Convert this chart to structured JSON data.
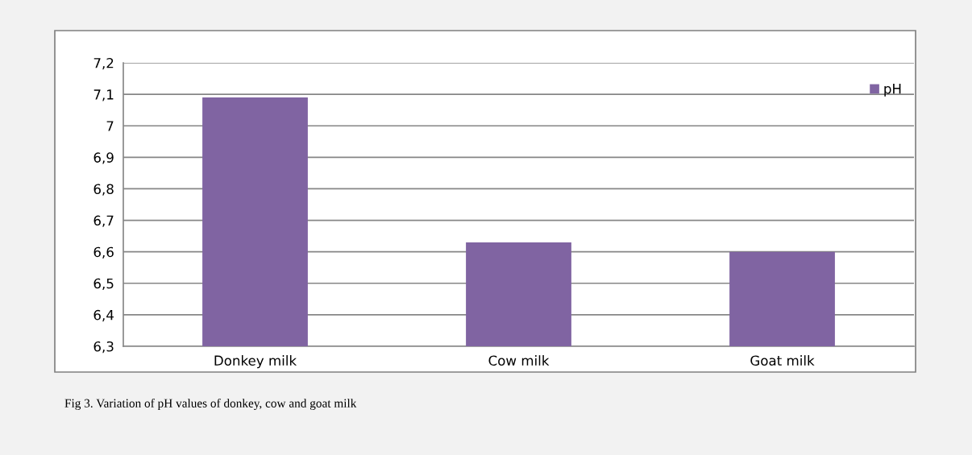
{
  "chart_data": {
    "type": "bar",
    "categories": [
      "Donkey milk",
      "Cow milk",
      "Goat milk"
    ],
    "series": [
      {
        "name": "pH",
        "color": "#8064a2",
        "values": [
          7.09,
          6.63,
          6.6
        ]
      }
    ],
    "ylim": [
      6.3,
      7.2
    ],
    "yticks": [
      {
        "value": 6.3,
        "label": "6,3"
      },
      {
        "value": 6.4,
        "label": "6,4"
      },
      {
        "value": 6.5,
        "label": "6,5"
      },
      {
        "value": 6.6,
        "label": "6,6"
      },
      {
        "value": 6.7,
        "label": "6,7"
      },
      {
        "value": 6.8,
        "label": "6,8"
      },
      {
        "value": 6.9,
        "label": "6,9"
      },
      {
        "value": 7,
        "label": "7"
      },
      {
        "value": 7.1,
        "label": "7,1"
      },
      {
        "value": 7.2,
        "label": "7,2"
      }
    ],
    "grid": "y",
    "legend": "top right",
    "annotations": [
      "Fig 3. Variation of pH values of donkey, cow and goat milk"
    ]
  }
}
